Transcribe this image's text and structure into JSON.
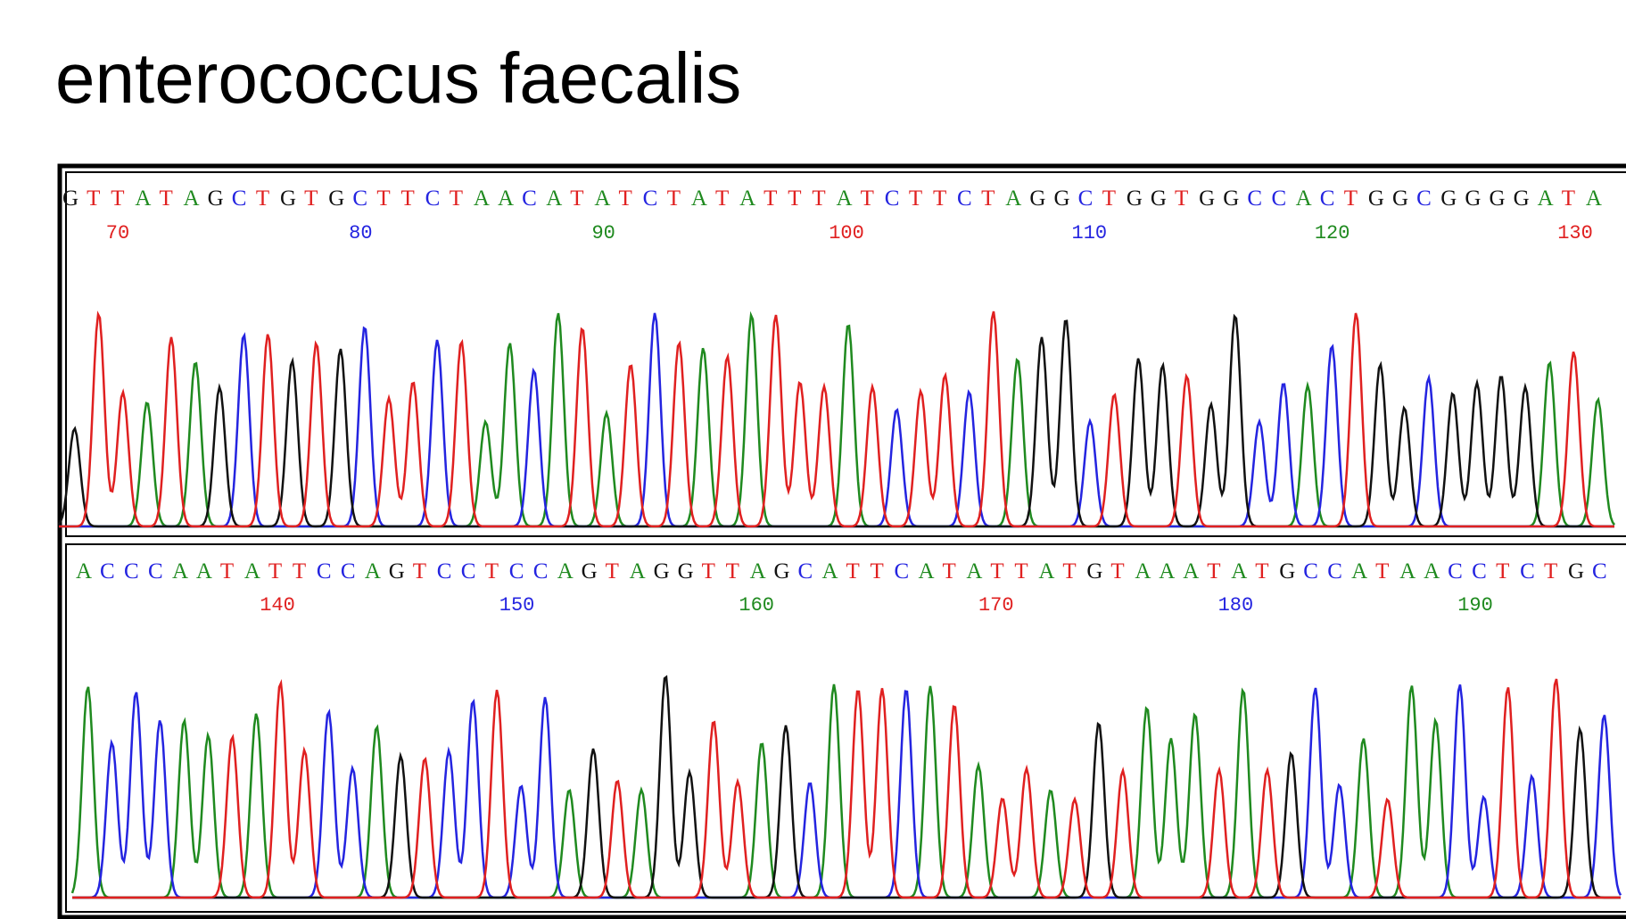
{
  "header": {
    "title": "enterococcus faecalis"
  },
  "panels": [
    {
      "sequence": "GTTATAGCTGTGCTTCTAACATATCTATATTTATCTTCTAGGCTGGTGGCCACTGGCGGGGATA",
      "positions": [
        70,
        80,
        90,
        100,
        110,
        120,
        130
      ]
    },
    {
      "sequence": "ACCCAATATTCCAGTCCTCCAGTAGGTTAGCATTCATATTATGTAAATATGCCATAACCTCTGC",
      "positions": [
        140,
        150,
        160,
        170,
        180,
        190
      ]
    }
  ]
}
